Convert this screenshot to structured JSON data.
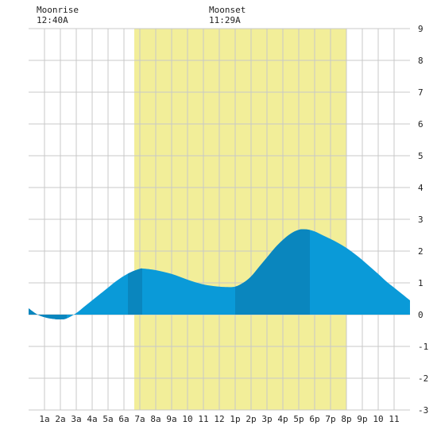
{
  "moon": {
    "rise_label": "Moonrise",
    "rise_time": "12:40A",
    "set_label": "Moonset",
    "set_time": "11:29A"
  },
  "colors": {
    "daylight": "#f2ee99",
    "tide_light": "#0a9ad8",
    "tide_dark": "#0a86be",
    "grid": "#c8c8c8",
    "background": "#ffffff"
  },
  "chart_data": {
    "type": "area",
    "x_unit": "hour of day",
    "xlim": [
      0,
      24
    ],
    "ylim": [
      -3,
      9
    ],
    "y_ticks": [
      -3,
      -2,
      -1,
      0,
      1,
      2,
      3,
      4,
      5,
      6,
      7,
      8,
      9
    ],
    "x_ticks": [
      1,
      2,
      3,
      4,
      5,
      6,
      7,
      8,
      9,
      10,
      11,
      12,
      13,
      14,
      15,
      16,
      17,
      18,
      19,
      20,
      21,
      22,
      23
    ],
    "x_tick_labels": [
      "1a",
      "2a",
      "3a",
      "4a",
      "5a",
      "6a",
      "7a",
      "8a",
      "9a",
      "10",
      "11",
      "12",
      "1p",
      "2p",
      "3p",
      "4p",
      "5p",
      "6p",
      "7p",
      "8p",
      "9p",
      "10",
      "11"
    ],
    "daylight": [
      6.65,
      20.0
    ],
    "tide_dark_intervals": [
      [
        0,
        2.4
      ],
      [
        6.25,
        7.15
      ],
      [
        13.0,
        17.7
      ]
    ],
    "series": [
      {
        "x": [
          0,
          0.5,
          1,
          1.5,
          2,
          2.4,
          3,
          3.5,
          4,
          4.5,
          5,
          5.5,
          6,
          6.5,
          7,
          7.2,
          8,
          9,
          10,
          11,
          12,
          12.5,
          13,
          13.5,
          14,
          14.5,
          15,
          15.5,
          16,
          16.5,
          17,
          17.5,
          18,
          18.5,
          19,
          19.5,
          20,
          20.5,
          21,
          21.5,
          22,
          22.5,
          23,
          23.5,
          24
        ],
        "y": [
          0.2,
          0.02,
          -0.08,
          -0.13,
          -0.15,
          -0.12,
          0.05,
          0.25,
          0.45,
          0.65,
          0.85,
          1.05,
          1.22,
          1.35,
          1.44,
          1.45,
          1.4,
          1.28,
          1.1,
          0.95,
          0.88,
          0.87,
          0.88,
          1.0,
          1.2,
          1.5,
          1.8,
          2.1,
          2.35,
          2.55,
          2.67,
          2.68,
          2.62,
          2.5,
          2.38,
          2.25,
          2.1,
          1.92,
          1.72,
          1.5,
          1.28,
          1.05,
          0.85,
          0.65,
          0.45
        ]
      }
    ]
  }
}
